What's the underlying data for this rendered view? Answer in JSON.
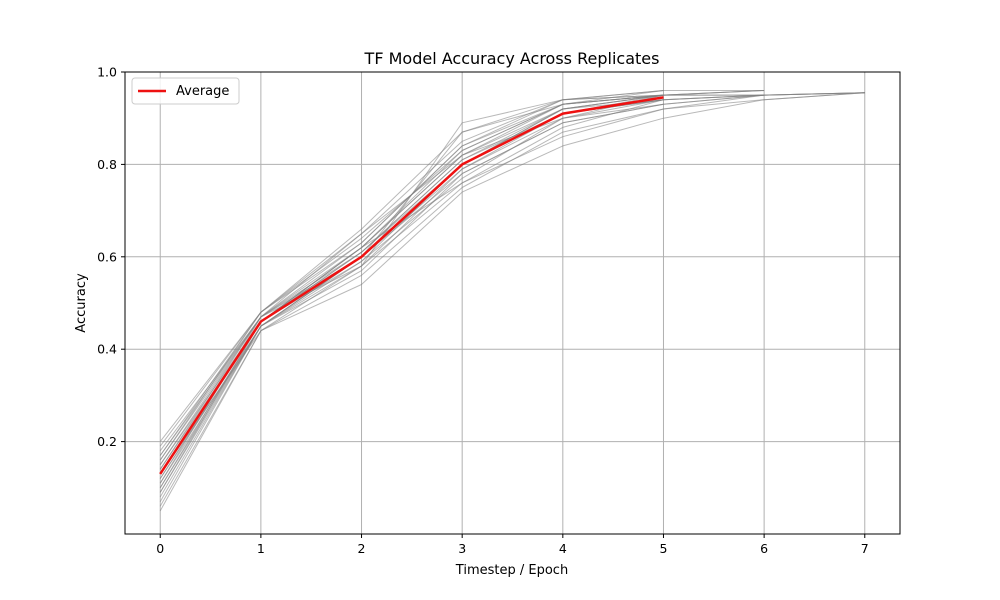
{
  "chart_data": {
    "type": "line",
    "title": "TF Model Accuracy Across Replicates",
    "xlabel": "Timestep / Epoch",
    "ylabel": "Accuracy",
    "xlim": [
      -0.35,
      7.35
    ],
    "ylim": [
      0.0,
      1.0
    ],
    "xticks": [
      0,
      1,
      2,
      3,
      4,
      5,
      6,
      7
    ],
    "yticks": [
      0.2,
      0.4,
      0.6,
      0.8,
      1.0
    ],
    "grid": true,
    "legend": {
      "location": "upper-left",
      "entries": [
        "Average"
      ]
    },
    "colors": {
      "average": "#ee1111",
      "replicate": "#808080",
      "grid": "#b0b0b0"
    },
    "average": {
      "name": "Average",
      "x": [
        0,
        1,
        2,
        3,
        4,
        5
      ],
      "y": [
        0.13,
        0.46,
        0.6,
        0.8,
        0.91,
        0.945
      ]
    },
    "replicates": [
      {
        "x": [
          0,
          1,
          2,
          3,
          4,
          5
        ],
        "y": [
          0.05,
          0.44,
          0.58,
          0.76,
          0.88,
          0.94
        ]
      },
      {
        "x": [
          0,
          1,
          2,
          3,
          4,
          5
        ],
        "y": [
          0.07,
          0.45,
          0.6,
          0.79,
          0.9,
          0.95
        ]
      },
      {
        "x": [
          0,
          1,
          2,
          3,
          4,
          5
        ],
        "y": [
          0.09,
          0.46,
          0.62,
          0.82,
          0.92,
          0.95
        ]
      },
      {
        "x": [
          0,
          1,
          2,
          3,
          4,
          5
        ],
        "y": [
          0.11,
          0.47,
          0.63,
          0.84,
          0.93,
          0.96
        ]
      },
      {
        "x": [
          0,
          1,
          2,
          3,
          4,
          5
        ],
        "y": [
          0.13,
          0.46,
          0.59,
          0.8,
          0.91,
          0.94
        ]
      },
      {
        "x": [
          0,
          1,
          2,
          3,
          4,
          5
        ],
        "y": [
          0.15,
          0.47,
          0.61,
          0.81,
          0.91,
          0.95
        ]
      },
      {
        "x": [
          0,
          1,
          2,
          3,
          4,
          5
        ],
        "y": [
          0.17,
          0.48,
          0.64,
          0.83,
          0.93,
          0.95
        ]
      },
      {
        "x": [
          0,
          1,
          2,
          3,
          4,
          5
        ],
        "y": [
          0.19,
          0.48,
          0.65,
          0.85,
          0.94,
          0.96
        ]
      },
      {
        "x": [
          0,
          1,
          2,
          3,
          4,
          5
        ],
        "y": [
          0.12,
          0.45,
          0.57,
          0.78,
          0.89,
          0.93
        ]
      },
      {
        "x": [
          0,
          1,
          2,
          3,
          4,
          5
        ],
        "y": [
          0.14,
          0.46,
          0.6,
          0.8,
          0.92,
          0.95
        ]
      },
      {
        "x": [
          0,
          1,
          2,
          3,
          4,
          5
        ],
        "y": [
          0.16,
          0.47,
          0.62,
          0.82,
          0.93,
          0.95
        ]
      },
      {
        "x": [
          0,
          1,
          2,
          3,
          4,
          5
        ],
        "y": [
          0.1,
          0.46,
          0.61,
          0.81,
          0.92,
          0.94
        ]
      },
      {
        "x": [
          0,
          1,
          2,
          3,
          4,
          5,
          6
        ],
        "y": [
          0.08,
          0.45,
          0.59,
          0.77,
          0.9,
          0.94,
          0.95
        ]
      },
      {
        "x": [
          0,
          1,
          2,
          3,
          4,
          5,
          6
        ],
        "y": [
          0.12,
          0.46,
          0.62,
          0.83,
          0.93,
          0.95,
          0.96
        ]
      },
      {
        "x": [
          0,
          1,
          2,
          3,
          4,
          5,
          6
        ],
        "y": [
          0.16,
          0.48,
          0.66,
          0.87,
          0.94,
          0.95,
          0.96
        ]
      },
      {
        "x": [
          0,
          1,
          2,
          3,
          4,
          5,
          6
        ],
        "y": [
          0.14,
          0.47,
          0.58,
          0.79,
          0.91,
          0.94,
          0.95
        ]
      },
      {
        "x": [
          0,
          1,
          2,
          3,
          4,
          5,
          6
        ],
        "y": [
          0.18,
          0.47,
          0.6,
          0.8,
          0.92,
          0.95,
          0.96
        ]
      },
      {
        "x": [
          0,
          1,
          2,
          3,
          4,
          5,
          6
        ],
        "y": [
          0.1,
          0.45,
          0.6,
          0.78,
          0.89,
          0.93,
          0.95
        ]
      },
      {
        "x": [
          0,
          1,
          2,
          3,
          4,
          5,
          6
        ],
        "y": [
          0.13,
          0.44,
          0.56,
          0.75,
          0.87,
          0.92,
          0.95
        ]
      },
      {
        "x": [
          0,
          1,
          2,
          3,
          4,
          5,
          6
        ],
        "y": [
          0.2,
          0.48,
          0.63,
          0.84,
          0.94,
          0.96,
          0.96
        ]
      },
      {
        "x": [
          0,
          1,
          2,
          3,
          4,
          5,
          6,
          7
        ],
        "y": [
          0.06,
          0.44,
          0.54,
          0.74,
          0.84,
          0.9,
          0.94,
          0.955
        ]
      },
      {
        "x": [
          0,
          1,
          2,
          3,
          4,
          5,
          6,
          7
        ],
        "y": [
          0.11,
          0.45,
          0.58,
          0.89,
          0.94,
          0.95,
          0.95,
          0.955
        ]
      },
      {
        "x": [
          0,
          1,
          2,
          3,
          4,
          5,
          6,
          7
        ],
        "y": [
          0.15,
          0.46,
          0.61,
          0.8,
          0.91,
          0.94,
          0.95,
          0.955
        ]
      },
      {
        "x": [
          0,
          1,
          2,
          3,
          4,
          5,
          6,
          7
        ],
        "y": [
          0.09,
          0.45,
          0.6,
          0.87,
          0.93,
          0.95,
          0.95,
          0.955
        ]
      },
      {
        "x": [
          0,
          1,
          2,
          3,
          4,
          5,
          6,
          7
        ],
        "y": [
          0.17,
          0.47,
          0.65,
          0.82,
          0.9,
          0.93,
          0.95,
          0.955
        ]
      },
      {
        "x": [
          0,
          1,
          2,
          3,
          4,
          5,
          6,
          7
        ],
        "y": [
          0.13,
          0.46,
          0.62,
          0.76,
          0.86,
          0.92,
          0.94,
          0.955
        ]
      }
    ]
  }
}
